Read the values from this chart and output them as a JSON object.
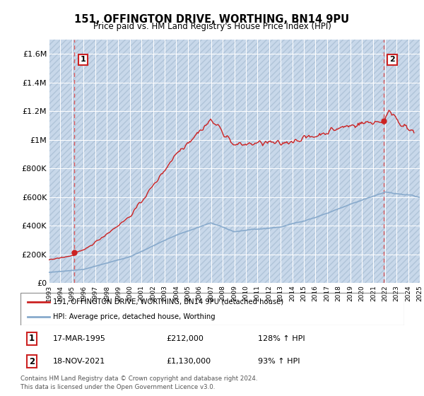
{
  "title": "151, OFFINGTON DRIVE, WORTHING, BN14 9PU",
  "subtitle": "Price paid vs. HM Land Registry's House Price Index (HPI)",
  "ylim": [
    0,
    1700000
  ],
  "yticks": [
    0,
    200000,
    400000,
    600000,
    800000,
    1000000,
    1200000,
    1400000,
    1600000
  ],
  "ytick_labels": [
    "£0",
    "£200K",
    "£400K",
    "£600K",
    "£800K",
    "£1M",
    "£1.2M",
    "£1.4M",
    "£1.6M"
  ],
  "plot_bg_color": "#dce8f5",
  "hatch_bg_color": "#c8d8ea",
  "grid_color": "#ffffff",
  "line_color_red": "#cc2222",
  "line_color_blue": "#88aacc",
  "marker_color": "#cc2222",
  "annotation_box_color": "#cc2222",
  "point1_x": 1995.21,
  "point1_y": 212000,
  "point1_label": "1",
  "point1_date": "17-MAR-1995",
  "point1_price": "£212,000",
  "point1_hpi": "128% ↑ HPI",
  "point2_x": 2021.88,
  "point2_y": 1130000,
  "point2_label": "2",
  "point2_date": "18-NOV-2021",
  "point2_price": "£1,130,000",
  "point2_hpi": "93% ↑ HPI",
  "legend_line1": "151, OFFINGTON DRIVE, WORTHING, BN14 9PU (detached house)",
  "legend_line2": "HPI: Average price, detached house, Worthing",
  "footer": "Contains HM Land Registry data © Crown copyright and database right 2024.\nThis data is licensed under the Open Government Licence v3.0.",
  "xtick_years": [
    1993,
    1994,
    1995,
    1996,
    1997,
    1998,
    1999,
    2000,
    2001,
    2002,
    2003,
    2004,
    2005,
    2006,
    2007,
    2008,
    2009,
    2010,
    2011,
    2012,
    2013,
    2014,
    2015,
    2016,
    2017,
    2018,
    2019,
    2020,
    2021,
    2022,
    2023,
    2024,
    2025
  ]
}
